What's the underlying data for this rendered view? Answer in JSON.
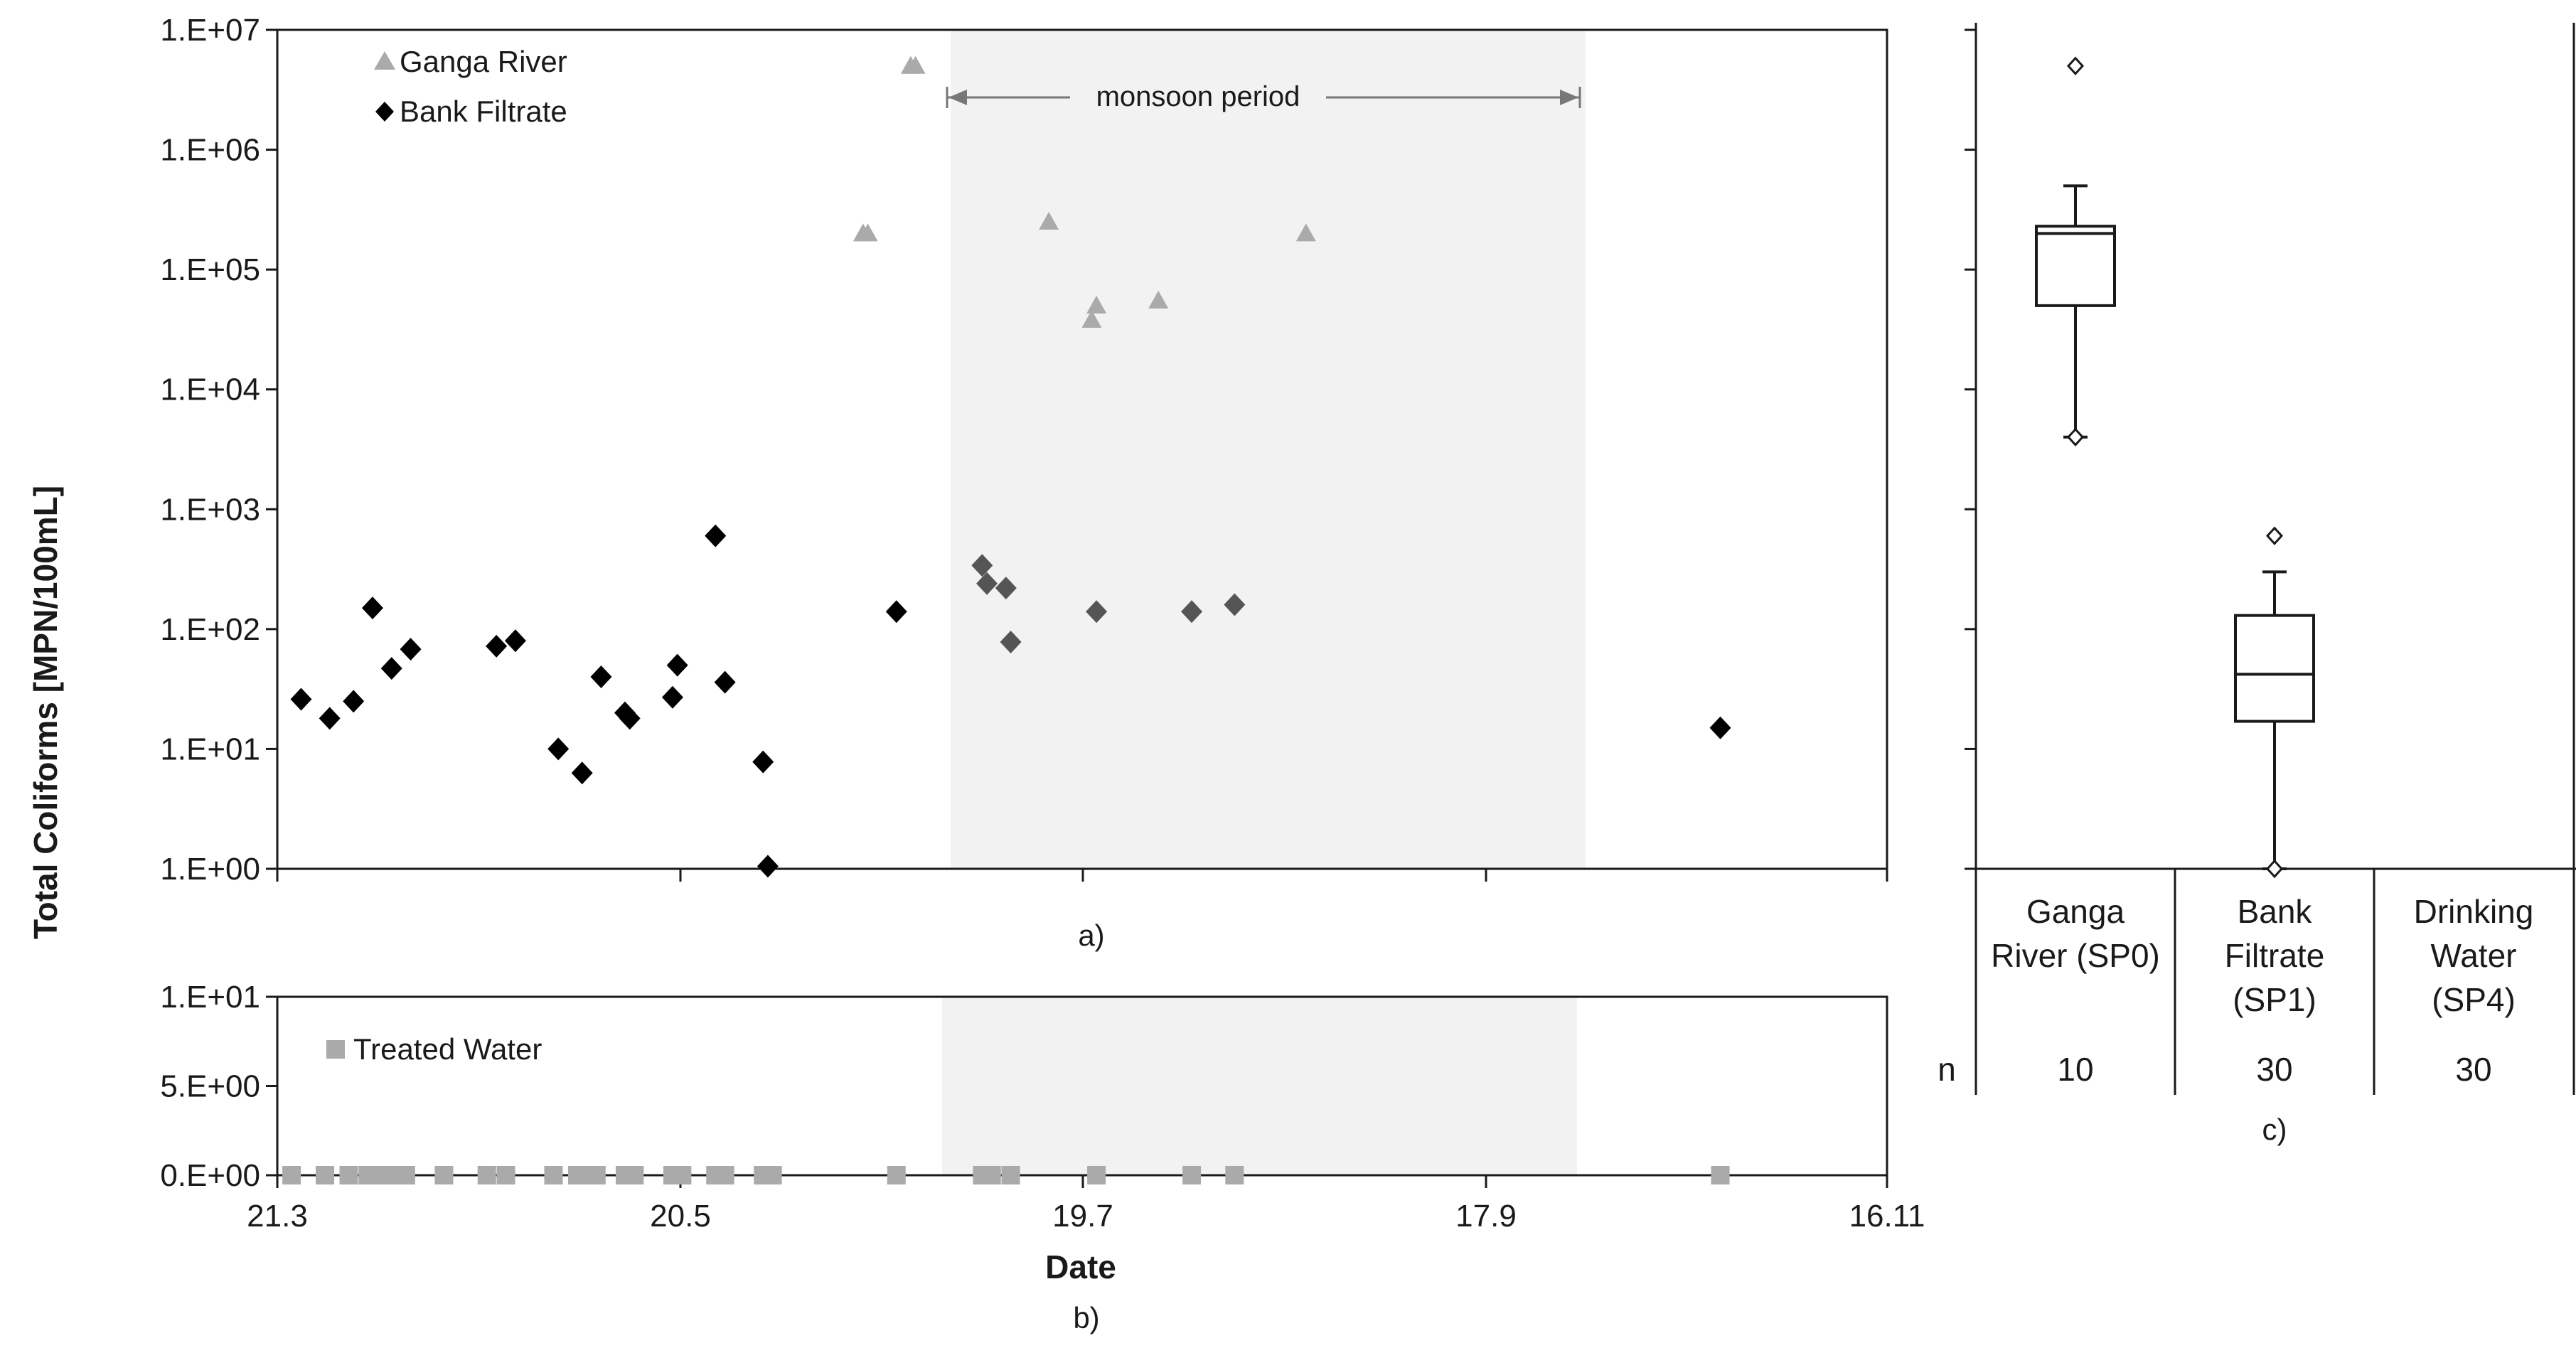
{
  "figure": {
    "y_axis_title": "Total Coliforms [MPN/100mL]",
    "panel_a_caption": "a)",
    "panel_b_caption": "b)",
    "panel_c_caption": "c)",
    "x_axis_title": "Date"
  },
  "colors": {
    "ganga_river": "#aaaaaa",
    "bank_filtrate": "#000000",
    "bank_filtrate_monsoon": "#555555",
    "treated_water": "#aaaaaa",
    "monsoon_shade": "#f2f2f2",
    "axis": "#1a1a1a"
  },
  "chart_data": [
    {
      "id": "a",
      "type": "scatter",
      "y_scale": "log",
      "ylim": [
        1,
        10000000
      ],
      "y_ticks": [
        "1.E+00",
        "1.E+01",
        "1.E+02",
        "1.E+03",
        "1.E+04",
        "1.E+05",
        "1.E+06",
        "1.E+07"
      ],
      "x_ticks": [
        "21.3",
        "20.5",
        "19.7",
        "17.9",
        "16.11"
      ],
      "annotation": "monsoon period",
      "legend_position": "top-left",
      "series": [
        {
          "name": "Ganga River",
          "marker": "triangle",
          "points": [
            [
              12.3,
              200000
            ],
            [
              12.4,
              200000
            ],
            [
              13.3,
              5000000
            ],
            [
              13.4,
              5000000
            ],
            [
              16.2,
              250000
            ],
            [
              17.1,
              38000
            ],
            [
              17.2,
              50000
            ],
            [
              18.5,
              55000
            ],
            [
              21.6,
              200000
            ]
          ]
        },
        {
          "name": "Bank Filtrate",
          "marker": "diamond",
          "points": [
            [
              0.5,
              26
            ],
            [
              1.1,
              18
            ],
            [
              1.6,
              25
            ],
            [
              2.0,
              150
            ],
            [
              2.4,
              47
            ],
            [
              2.8,
              68
            ],
            [
              4.6,
              72
            ],
            [
              5.0,
              80
            ],
            [
              5.9,
              10
            ],
            [
              6.4,
              6.3
            ],
            [
              6.8,
              40
            ],
            [
              7.3,
              20
            ],
            [
              7.4,
              18
            ],
            [
              8.3,
              27
            ],
            [
              8.4,
              50
            ],
            [
              9.2,
              600
            ],
            [
              9.4,
              36
            ],
            [
              10.2,
              7.8
            ],
            [
              10.3,
              1.05
            ],
            [
              13.0,
              140
            ],
            [
              14.8,
              340
            ],
            [
              14.9,
              240
            ],
            [
              15.3,
              220
            ],
            [
              15.4,
              78
            ],
            [
              17.2,
              140
            ],
            [
              19.2,
              140
            ],
            [
              20.1,
              160
            ],
            [
              30.3,
              15
            ]
          ]
        }
      ]
    },
    {
      "id": "b",
      "type": "scatter",
      "ylim": [
        0,
        10
      ],
      "y_ticks": [
        "0.E+00",
        "5.E+00",
        "1.E+01"
      ],
      "x_ticks": [
        "21.3",
        "20.5",
        "19.7",
        "17.9",
        "16.11"
      ],
      "legend_position": "top-left",
      "series": [
        {
          "name": "Treated Water",
          "marker": "square",
          "points": [
            [
              0.3,
              0
            ],
            [
              1.0,
              0
            ],
            [
              1.5,
              0
            ],
            [
              1.9,
              0
            ],
            [
              2.1,
              0
            ],
            [
              2.3,
              0
            ],
            [
              2.5,
              0
            ],
            [
              2.7,
              0
            ],
            [
              3.5,
              0
            ],
            [
              4.4,
              0
            ],
            [
              4.8,
              0
            ],
            [
              5.8,
              0
            ],
            [
              6.3,
              0
            ],
            [
              6.5,
              0
            ],
            [
              6.7,
              0
            ],
            [
              7.3,
              0
            ],
            [
              7.5,
              0
            ],
            [
              8.3,
              0
            ],
            [
              8.5,
              0
            ],
            [
              9.2,
              0
            ],
            [
              9.4,
              0
            ],
            [
              10.2,
              0
            ],
            [
              10.4,
              0
            ],
            [
              13.0,
              0
            ],
            [
              14.8,
              0
            ],
            [
              15.0,
              0
            ],
            [
              15.4,
              0
            ],
            [
              17.2,
              0
            ],
            [
              19.2,
              0
            ],
            [
              20.1,
              0
            ],
            [
              30.3,
              0
            ]
          ]
        }
      ]
    },
    {
      "id": "c",
      "type": "box",
      "y_scale": "log",
      "ylim": [
        1,
        10000000
      ],
      "row_label": "n",
      "categories": [
        {
          "name_lines": [
            "Ganga",
            "River (SP0)"
          ],
          "n": "10",
          "box": {
            "whisker_low": 4000,
            "q1": 50000,
            "median": 200000,
            "q3": 230000,
            "whisker_high": 500000,
            "outliers": [
              5000000,
              4000
            ]
          }
        },
        {
          "name_lines": [
            "Bank",
            "Filtrate",
            "(SP1)"
          ],
          "n": "30",
          "box": {
            "whisker_low": 1,
            "q1": 17,
            "median": 42,
            "q3": 130,
            "whisker_high": 300,
            "outliers": [
              600,
              1
            ]
          }
        },
        {
          "name_lines": [
            "Drinking",
            "Water",
            "(SP4)"
          ],
          "n": "30",
          "box": null
        }
      ]
    }
  ]
}
